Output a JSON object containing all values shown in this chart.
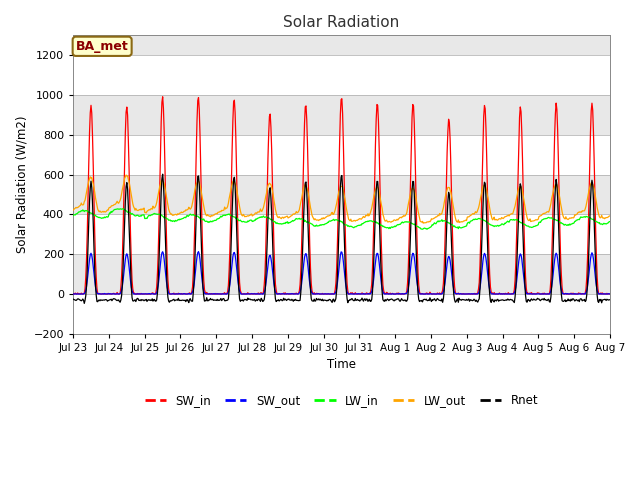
{
  "title": "Solar Radiation",
  "ylabel": "Solar Radiation (W/m2)",
  "xlabel": "Time",
  "station_label": "BA_met",
  "ylim": [
    -200,
    1300
  ],
  "yticks": [
    -200,
    0,
    200,
    400,
    600,
    800,
    1000,
    1200
  ],
  "series_colors": {
    "SW_in": "#ff0000",
    "SW_out": "#0000ff",
    "LW_in": "#00ff00",
    "LW_out": "#ffa500",
    "Rnet": "#000000"
  },
  "fig_bg_color": "#ffffff",
  "plot_bg_color": "#e8e8e8",
  "band_color": "#d3d3d3",
  "n_days": 15,
  "tick_labels": [
    "Jul 23",
    "Jul 24",
    "Jul 25",
    "Jul 26",
    "Jul 27",
    "Jul 28",
    "Jul 29",
    "Jul 30",
    "Jul 31",
    "Aug 1",
    "Aug 2",
    "Aug 3",
    "Aug 4",
    "Aug 5",
    "Aug 6",
    "Aug 7"
  ],
  "day_peaks_SW": [
    950,
    940,
    990,
    990,
    980,
    910,
    950,
    990,
    960,
    960,
    880,
    950,
    940,
    960,
    960
  ],
  "lw_in_base": [
    400,
    410,
    385,
    380,
    380,
    370,
    360,
    355,
    350,
    345,
    350,
    360,
    355,
    365,
    370
  ]
}
